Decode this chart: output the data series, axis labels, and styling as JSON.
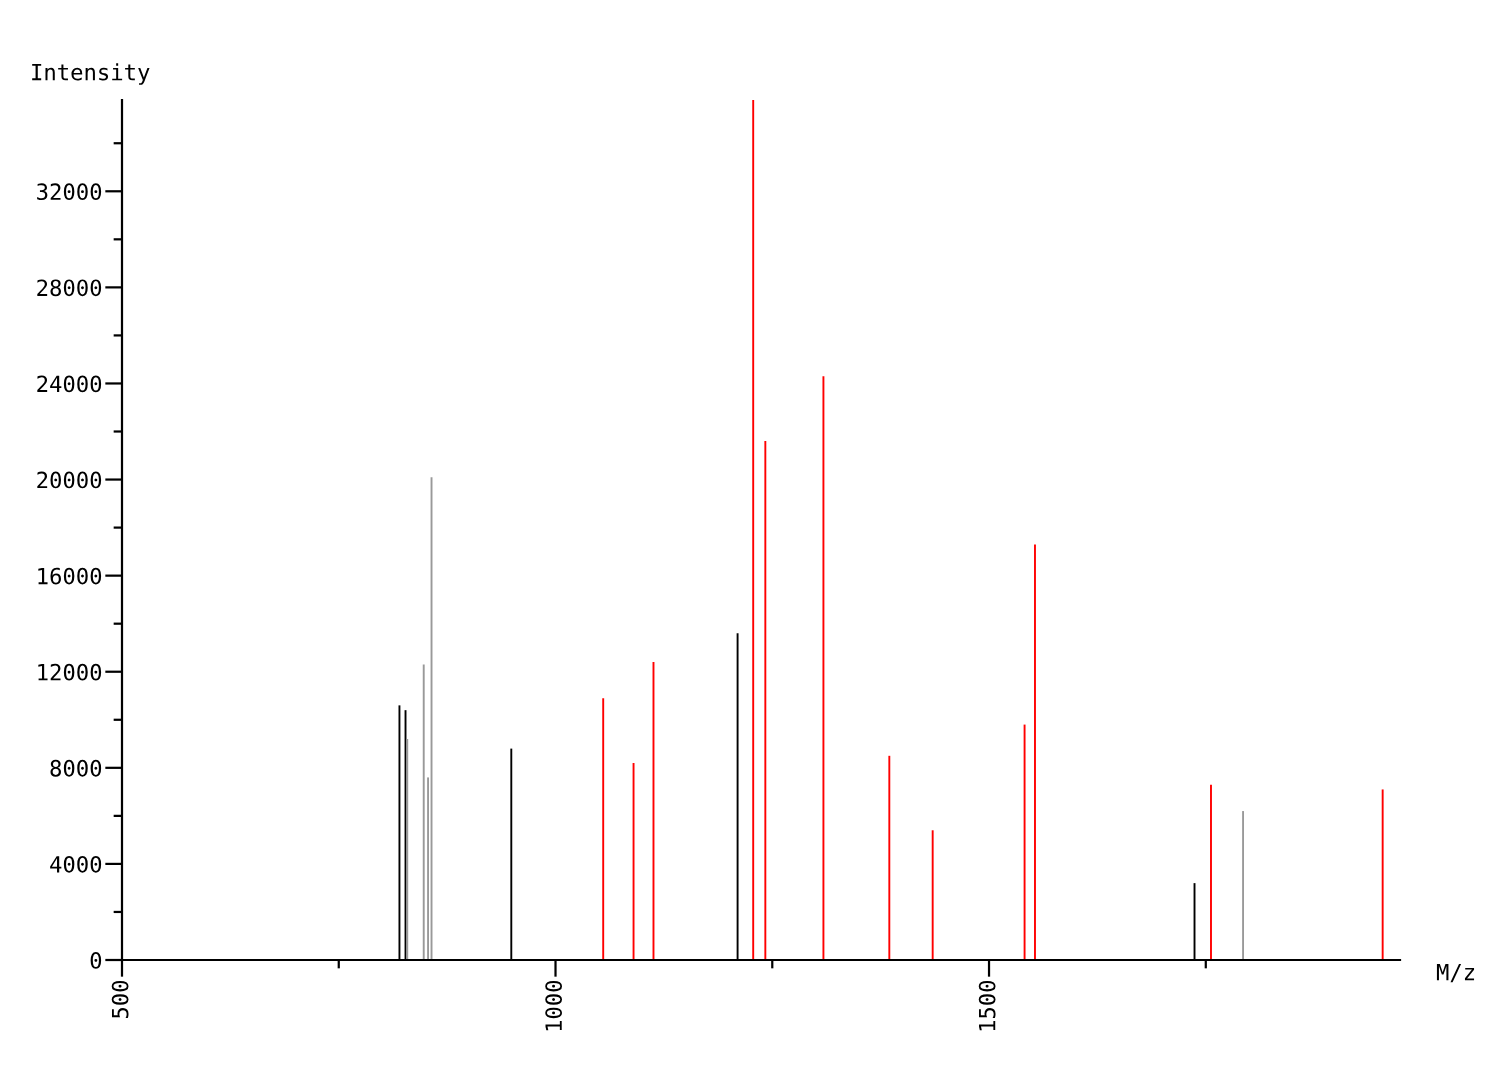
{
  "chart_data": {
    "type": "bar",
    "xlabel": "M/z",
    "ylabel": "Intensity",
    "xlim": [
      500,
      1974
    ],
    "ylim": [
      0,
      35800
    ],
    "xticks": [
      500,
      {
        "value": 750,
        "label": null
      },
      1000,
      {
        "value": 1250,
        "label": null
      },
      1500,
      {
        "value": 1750,
        "label": null
      }
    ],
    "yticks": [
      0,
      {
        "value": 2000,
        "label": null
      },
      4000,
      {
        "value": 6000,
        "label": null
      },
      8000,
      {
        "value": 10000,
        "label": null
      },
      12000,
      {
        "value": 14000,
        "label": null
      },
      16000,
      {
        "value": 18000,
        "label": null
      },
      20000,
      {
        "value": 22000,
        "label": null
      },
      24000,
      {
        "value": 26000,
        "label": null
      },
      28000,
      {
        "value": 30000,
        "label": null
      },
      32000,
      {
        "value": 34000,
        "label": null
      }
    ],
    "grid": false,
    "legend": false,
    "series": [
      {
        "color": "#000000",
        "x": [
          820,
          827,
          949,
          1210,
          1737
        ],
        "values": [
          10600,
          10400,
          8800,
          13600,
          3200
        ]
      },
      {
        "color": "#999999",
        "x": [
          829,
          848,
          853,
          857,
          1793
        ],
        "values": [
          9200,
          12300,
          7600,
          20100,
          6200
        ]
      },
      {
        "color": "#ff0000",
        "x": [
          1055,
          1090,
          1113,
          1228,
          1242,
          1309,
          1385,
          1435,
          1541,
          1553,
          1756,
          1954
        ],
        "values": [
          10900,
          8200,
          12400,
          35800,
          21600,
          24300,
          8500,
          5400,
          9800,
          17300,
          7300,
          7100
        ]
      }
    ]
  }
}
